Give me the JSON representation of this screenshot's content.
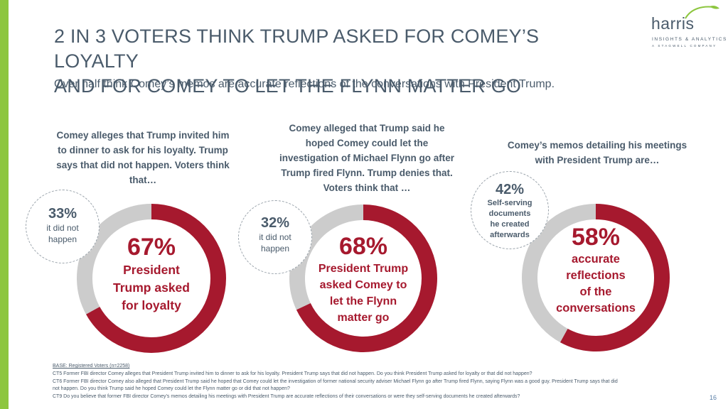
{
  "header": {
    "title_line1": "2 IN 3 VOTERS THINK TRUMP ASKED FOR COMEY’S LOYALTY",
    "title_line2": "AND FOR COMEY TO LET THE FLYNN MATTER GO",
    "subtitle": "Over half think Comey’s memos are accurate reflections of the conversations with President Trump."
  },
  "logo": {
    "word": "harris",
    "line1": "INSIGHTS & ANALYTICS",
    "line2": "A STAGWELL COMPANY",
    "leaf_color": "#8dc63f"
  },
  "colors": {
    "accent": "#8dc63f",
    "primary": "#a6192e",
    "secondary": "#cccccc",
    "text": "#4a5b6b"
  },
  "panels": [
    {
      "question": [
        "Comey alleges that Trump invited him",
        "to dinner to ask for his loyalty. Trump",
        "says that did not happen. Voters think",
        "that…"
      ],
      "side_pct": "33%",
      "side_label": [
        "it did not",
        "happen"
      ],
      "main_pct": "67%",
      "main_label": [
        "President",
        "Trump asked",
        "for loyalty"
      ],
      "value": 67
    },
    {
      "question": [
        "Comey alleged that Trump said he",
        "hoped Comey could let the",
        "investigation of Michael Flynn go after",
        "Trump fired Flynn. Trump denies that.",
        "Voters think that …"
      ],
      "side_pct": "32%",
      "side_label": [
        "it did not",
        "happen"
      ],
      "main_pct": "68%",
      "main_label": [
        "President Trump",
        "asked Comey to",
        "let the Flynn",
        "matter go"
      ],
      "value": 68
    },
    {
      "question": [
        "Comey’s memos detailing his meetings",
        "with President Trump are…"
      ],
      "side_pct": "42%",
      "side_label": [
        "Self-serving",
        "documents",
        "he created",
        "afterwards"
      ],
      "main_pct": "58%",
      "main_label": [
        "accurate",
        "reflections",
        "of the",
        "conversations"
      ],
      "value": 58
    }
  ],
  "notes": {
    "base": "BASE: Registered Voters (n=2258)",
    "lines": [
      "CT5 Former FBI director Comey alleges that President Trump invited him to dinner to ask for his loyalty. President Trump says that did not happen. Do you think President Trump asked for loyalty or that did not happen?",
      "CT6 Former FBI director Comey also alleged that President Trump said he hoped that Comey could let the investigation of former national security adviser Michael Flynn go after Trump fired Flynn, saying Flynn was a good guy. President Trump says that did",
      "not happen. Do you think Trump said he hoped Comey could let the Flynn matter go or did that not happen?",
      "CT9 Do you believe that former FBI director Comey’s memos detailing his meetings with President Trump are accurate reflections of their conversations or were they self-serving documents he created afterwards?"
    ]
  },
  "page_number": "16"
}
